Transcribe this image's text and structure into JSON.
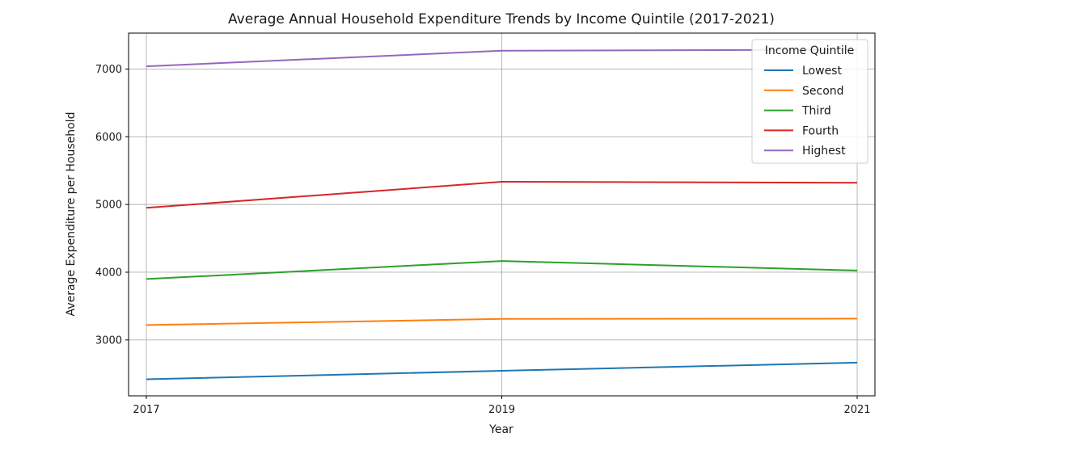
{
  "chart_data": {
    "type": "line",
    "title": "Average Annual Household Expenditure Trends by Income Quintile (2017-2021)",
    "xlabel": "Year",
    "ylabel": "Average Expenditure per Household",
    "x": [
      2017,
      2019,
      2021
    ],
    "xticks": [
      "2017",
      "2019",
      "2021"
    ],
    "yticks": [
      3000,
      4000,
      5000,
      6000,
      7000
    ],
    "xlim": [
      2016.9,
      2021.1
    ],
    "ylim": [
      2175,
      7530
    ],
    "grid": true,
    "legend": {
      "title": "Income Quintile",
      "placement": "top-right"
    },
    "series": [
      {
        "name": "Lowest",
        "color": "#1f77b4",
        "values": [
          2420,
          2545,
          2665
        ]
      },
      {
        "name": "Second",
        "color": "#ff7f0e",
        "values": [
          3220,
          3310,
          3315
        ]
      },
      {
        "name": "Third",
        "color": "#2ca02c",
        "values": [
          3900,
          4165,
          4025
        ]
      },
      {
        "name": "Fourth",
        "color": "#d62728",
        "values": [
          4950,
          5335,
          5320
        ]
      },
      {
        "name": "Highest",
        "color": "#9467bd",
        "values": [
          7040,
          7270,
          7285
        ]
      }
    ]
  }
}
